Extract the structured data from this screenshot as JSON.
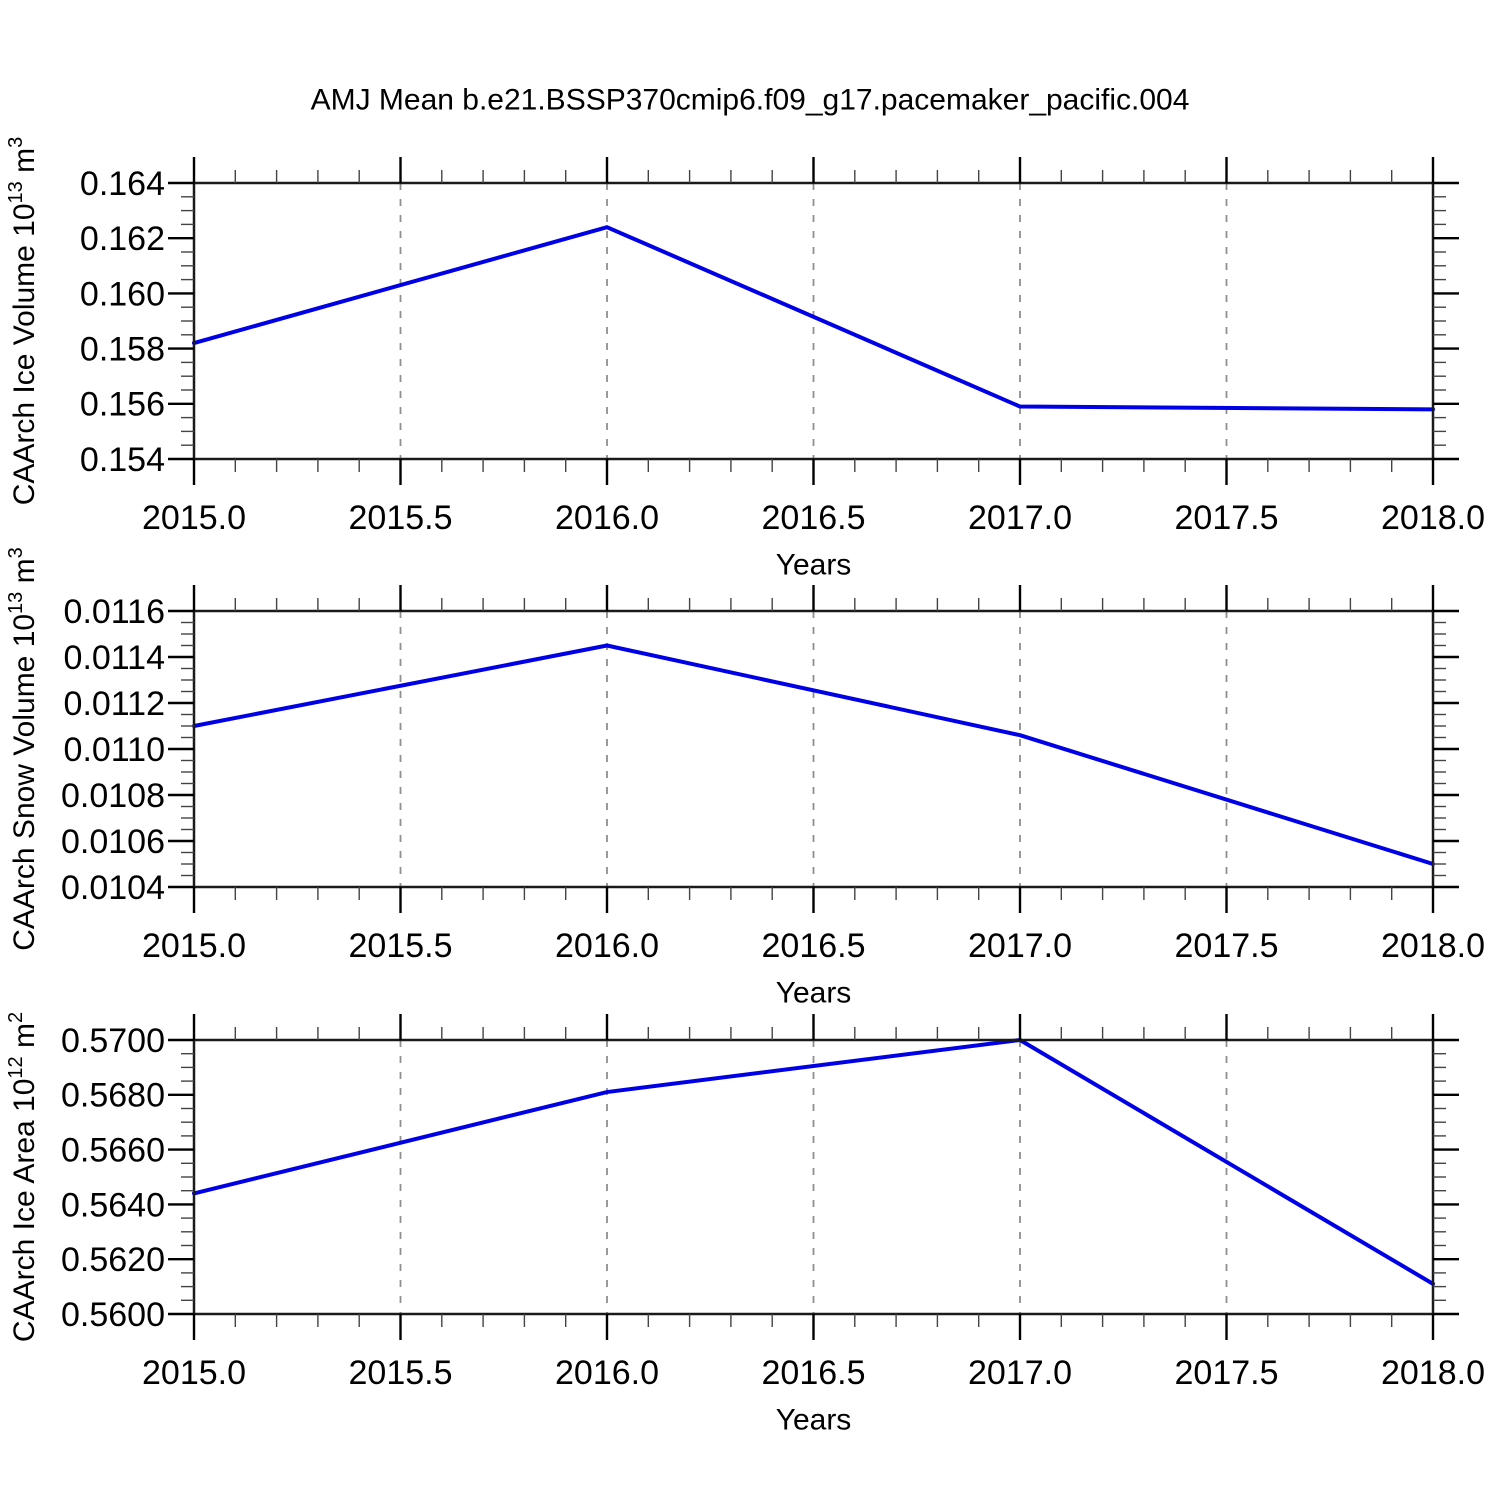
{
  "title": "AMJ Mean b.e21.BSSP370cmip6.f09_g17.pacemaker_pacific.004",
  "chart_data": [
    {
      "type": "line",
      "name": "ice-volume-panel",
      "x": [
        2015.0,
        2016.0,
        2017.0,
        2018.0
      ],
      "values": [
        0.1582,
        0.1624,
        0.1559,
        0.1558
      ],
      "ylabel": "CAArch Ice Volume 10^13 m^3",
      "ylabel_parts": [
        {
          "t": "CAArch Ice Volume 10"
        },
        {
          "t": "13",
          "sup": true
        },
        {
          "t": " m"
        },
        {
          "t": "3",
          "sup": true
        }
      ],
      "xlabel": "Years",
      "xlim": [
        2015.0,
        2018.0
      ],
      "ylim": [
        0.154,
        0.164
      ],
      "x_major_ticks": [
        2015.0,
        2015.5,
        2016.0,
        2016.5,
        2017.0,
        2017.5,
        2018.0
      ],
      "x_tick_labels": [
        "2015.0",
        "2015.5",
        "2016.0",
        "2016.5",
        "2017.0",
        "2017.5",
        "2018.0"
      ],
      "x_minor_step": 0.1,
      "y_major_ticks": [
        0.154,
        0.156,
        0.158,
        0.16,
        0.162,
        0.164
      ],
      "y_tick_labels": [
        "0.154",
        "0.156",
        "0.158",
        "0.160",
        "0.162",
        "0.164"
      ],
      "y_minor_step": 0.0005,
      "grid_x": [
        2015.5,
        2016.0,
        2016.5,
        2017.0,
        2017.5
      ],
      "grid_on": true,
      "legend": "none",
      "line_color": "#0000e6"
    },
    {
      "type": "line",
      "name": "snow-volume-panel",
      "x": [
        2015.0,
        2016.0,
        2017.0,
        2018.0
      ],
      "values": [
        0.0111,
        0.01145,
        0.01106,
        0.0105
      ],
      "ylabel": "CAArch Snow Volume 10^13 m^3",
      "ylabel_parts": [
        {
          "t": "CAArch Snow Volume 10"
        },
        {
          "t": "13",
          "sup": true
        },
        {
          "t": " m"
        },
        {
          "t": "3",
          "sup": true
        }
      ],
      "xlabel": "Years",
      "xlim": [
        2015.0,
        2018.0
      ],
      "ylim": [
        0.0104,
        0.0116
      ],
      "x_major_ticks": [
        2015.0,
        2015.5,
        2016.0,
        2016.5,
        2017.0,
        2017.5,
        2018.0
      ],
      "x_tick_labels": [
        "2015.0",
        "2015.5",
        "2016.0",
        "2016.5",
        "2017.0",
        "2017.5",
        "2018.0"
      ],
      "x_minor_step": 0.1,
      "y_major_ticks": [
        0.0104,
        0.0106,
        0.0108,
        0.011,
        0.0112,
        0.0114,
        0.0116
      ],
      "y_tick_labels": [
        "0.0104",
        "0.0106",
        "0.0108",
        "0.0110",
        "0.0112",
        "0.0114",
        "0.0116"
      ],
      "y_minor_step": 5e-05,
      "grid_x": [
        2015.5,
        2016.0,
        2016.5,
        2017.0,
        2017.5
      ],
      "grid_on": true,
      "legend": "none",
      "line_color": "#0000e6"
    },
    {
      "type": "line",
      "name": "ice-area-panel",
      "x": [
        2015.0,
        2016.0,
        2017.0,
        2018.0
      ],
      "values": [
        0.5644,
        0.5681,
        0.57,
        0.5611
      ],
      "ylabel": "CAArch Ice Area 10^12 m^2",
      "ylabel_parts": [
        {
          "t": "CAArch Ice Area 10"
        },
        {
          "t": "12",
          "sup": true
        },
        {
          "t": " m"
        },
        {
          "t": "2",
          "sup": true
        }
      ],
      "xlabel": "Years",
      "xlim": [
        2015.0,
        2018.0
      ],
      "ylim": [
        0.56,
        0.57
      ],
      "x_major_ticks": [
        2015.0,
        2015.5,
        2016.0,
        2016.5,
        2017.0,
        2017.5,
        2018.0
      ],
      "x_tick_labels": [
        "2015.0",
        "2015.5",
        "2016.0",
        "2016.5",
        "2017.0",
        "2017.5",
        "2018.0"
      ],
      "x_minor_step": 0.1,
      "y_major_ticks": [
        0.56,
        0.562,
        0.564,
        0.566,
        0.568,
        0.57
      ],
      "y_tick_labels": [
        "0.5600",
        "0.5620",
        "0.5640",
        "0.5660",
        "0.5680",
        "0.5700"
      ],
      "y_minor_step": 0.0005,
      "grid_x": [
        2015.5,
        2016.0,
        2016.5,
        2017.0,
        2017.5
      ],
      "grid_on": true,
      "legend": "none",
      "line_color": "#0000e6"
    }
  ]
}
